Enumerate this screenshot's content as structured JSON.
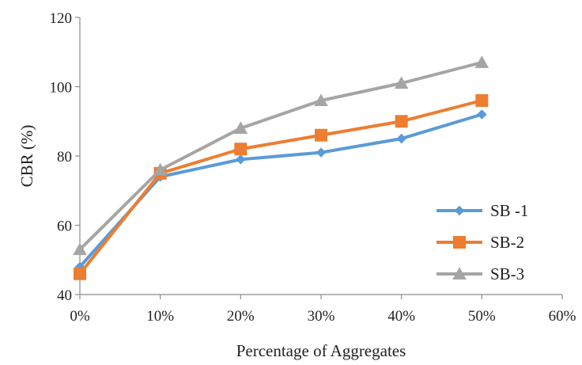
{
  "chart_data": {
    "type": "line",
    "title": "",
    "xlabel": "Percentage of Aggregates",
    "ylabel": "CBR (%)",
    "x_ticks": [
      "0%",
      "10%",
      "20%",
      "30%",
      "40%",
      "50%",
      "60%"
    ],
    "y_ticks": [
      "40",
      "60",
      "80",
      "100",
      "120"
    ],
    "xlim": [
      0,
      60
    ],
    "ylim": [
      40,
      120
    ],
    "x": [
      0,
      10,
      20,
      30,
      40,
      50
    ],
    "series": [
      {
        "name": "SB -1",
        "color": "#5b9bd5",
        "marker": "diamond",
        "values": [
          48,
          74,
          79,
          81,
          85,
          92
        ]
      },
      {
        "name": "SB-2",
        "color": "#ed7d31",
        "marker": "square",
        "values": [
          46,
          75,
          82,
          86,
          90,
          96
        ]
      },
      {
        "name": "SB-3",
        "color": "#a5a5a5",
        "marker": "triangle",
        "values": [
          53,
          76,
          88,
          96,
          101,
          107
        ]
      }
    ],
    "grid": false,
    "legend_position": "bottom-right"
  }
}
